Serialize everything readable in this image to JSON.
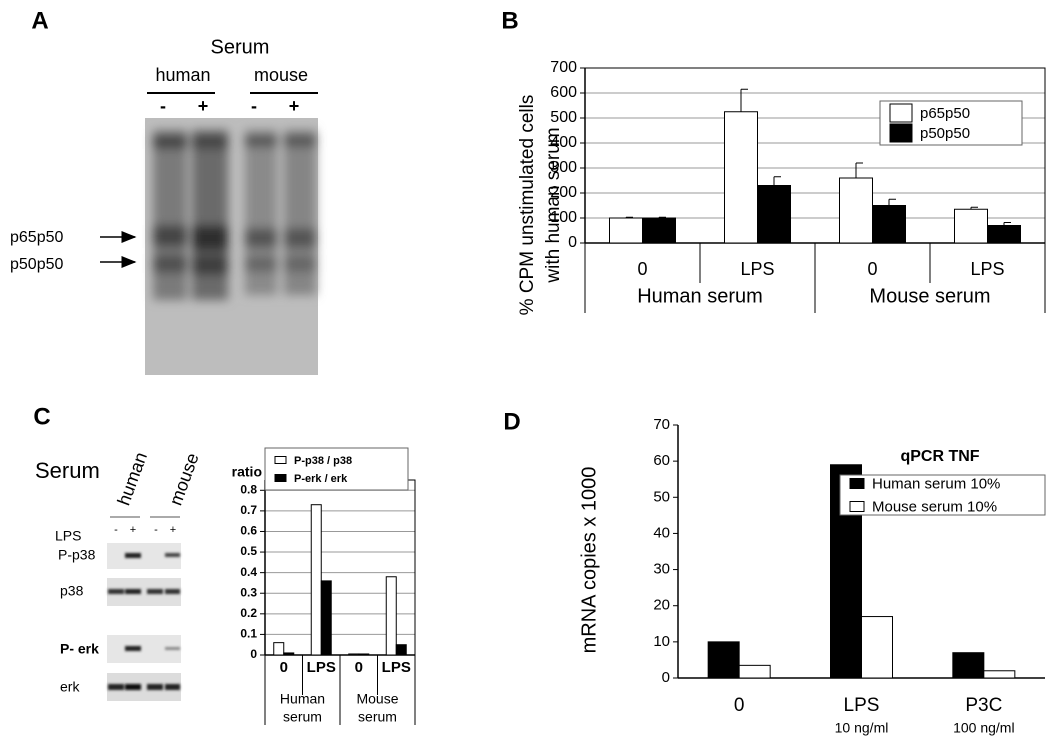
{
  "panel_labels": [
    "A",
    "B",
    "C",
    "D"
  ],
  "gel_a": {
    "title": "Serum",
    "groups": [
      "human",
      "mouse"
    ],
    "lanes": [
      "-",
      "+",
      "-",
      "+"
    ],
    "bands": [
      "p65p50",
      "p50p50"
    ]
  },
  "gel_c": {
    "title": "Serum",
    "groups": [
      "human",
      "mouse"
    ],
    "treatment": "LPS",
    "lanes": [
      "-",
      "+",
      "-",
      "+"
    ],
    "rows": [
      "P-p38",
      "p38",
      "P- erk",
      "erk"
    ]
  },
  "chart_data": [
    {
      "type": "bar",
      "ylabel": [
        "% CPM unstimulated cells",
        "with human serum"
      ],
      "categories": [
        "0",
        "LPS",
        "0",
        "LPS"
      ],
      "groups": [
        [
          "Human serum"
        ],
        [
          "Mouse serum"
        ]
      ],
      "series": [
        {
          "name": "p65p50",
          "color": "#ffffff",
          "values": [
            100,
            525,
            260,
            135
          ],
          "errors": [
            3,
            90,
            60,
            8
          ]
        },
        {
          "name": "p50p50",
          "color": "#000000",
          "values": [
            100,
            230,
            150,
            70
          ],
          "errors": [
            3,
            35,
            25,
            12
          ]
        }
      ],
      "ylim": [
        0,
        700
      ],
      "yticks": [
        0,
        100,
        200,
        300,
        400,
        500,
        600,
        700
      ],
      "grid": true
    },
    {
      "type": "bar",
      "ylabel": [
        "ratio"
      ],
      "categories": [
        "0",
        "LPS",
        "0",
        "LPS"
      ],
      "groups": [
        [
          "Human",
          "serum"
        ],
        [
          "Mouse",
          "serum"
        ]
      ],
      "series": [
        {
          "name": "P-p38 / p38",
          "color": "#ffffff",
          "values": [
            0.06,
            0.73,
            0.005,
            0.38
          ]
        },
        {
          "name": "P-erk / erk",
          "color": "#000000",
          "values": [
            0.01,
            0.36,
            0.005,
            0.05
          ]
        }
      ],
      "ylim": [
        0,
        0.85
      ],
      "yticks": [
        0,
        0.1,
        0.2,
        0.3,
        0.4,
        0.5,
        0.6,
        0.7,
        0.8
      ],
      "grid": true
    },
    {
      "type": "bar",
      "ylabel": [
        "mRNA copies x 1000"
      ],
      "legend_title": "qPCR TNF",
      "categories": [
        "0",
        "LPS",
        "P3C"
      ],
      "category_notes": [
        null,
        "10 ng/ml",
        "100 ng/ml"
      ],
      "series": [
        {
          "name": "Human serum 10%",
          "color": "#000000",
          "values": [
            10,
            59,
            7
          ]
        },
        {
          "name": "Mouse serum 10%",
          "color": "#ffffff",
          "values": [
            3.5,
            17,
            2
          ]
        }
      ],
      "ylim": [
        0,
        70
      ],
      "yticks": [
        0,
        10,
        20,
        30,
        40,
        50,
        60,
        70
      ],
      "grid": false
    }
  ]
}
